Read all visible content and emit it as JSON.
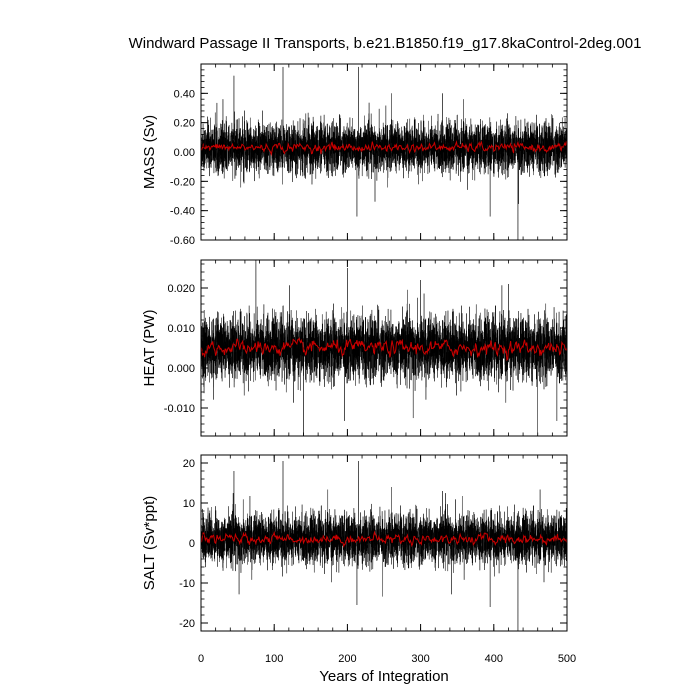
{
  "chart_data": {
    "type": "line",
    "title": "Windward Passage II Transports, b.e21.B1850.f19_g17.8kaControl-2deg.001",
    "xlabel": "Years of Integration",
    "xlim": [
      0,
      500
    ],
    "x_ticks": [
      0,
      100,
      200,
      300,
      400,
      500
    ],
    "x_tick_labels": [
      "0",
      "100",
      "200",
      "300",
      "400",
      "500"
    ],
    "series_colors": {
      "monthly": "#000000",
      "smoothed": "#cc0000"
    },
    "panels": [
      {
        "ylabel": "MASS (Sv)",
        "ylim": [
          -0.6,
          0.6
        ],
        "y_ticks": [
          -0.6,
          -0.4,
          -0.2,
          0.0,
          0.2,
          0.4
        ],
        "y_tick_labels": [
          "-0.60",
          "-0.40",
          "-0.20",
          "0.00",
          "0.20",
          "0.40"
        ],
        "mean": 0.03,
        "noise": 0.08,
        "smooth_amp": 0.02,
        "spikes": [
          {
            "x": 45,
            "y": 0.52
          },
          {
            "x": 112,
            "y": 0.58
          },
          {
            "x": 213,
            "y": -0.44
          },
          {
            "x": 215,
            "y": 0.58
          },
          {
            "x": 433,
            "y": -0.6
          },
          {
            "x": 330,
            "y": 0.4
          },
          {
            "x": 260,
            "y": 0.4
          },
          {
            "x": 30,
            "y": 0.36
          },
          {
            "x": 395,
            "y": -0.44
          }
        ]
      },
      {
        "ylabel": "HEAT (PW)",
        "ylim": [
          -0.017,
          0.027
        ],
        "y_ticks": [
          -0.01,
          0.0,
          0.01,
          0.02
        ],
        "y_tick_labels": [
          "-0.010",
          "0.000",
          "0.010",
          "0.020"
        ],
        "mean": 0.005,
        "noise": 0.0038,
        "smooth_amp": 0.0012,
        "spikes": [
          {
            "x": 75,
            "y": 0.027
          },
          {
            "x": 140,
            "y": -0.017
          },
          {
            "x": 200,
            "y": 0.025
          },
          {
            "x": 460,
            "y": -0.017
          },
          {
            "x": 300,
            "y": 0.022
          },
          {
            "x": 420,
            "y": 0.021
          }
        ]
      },
      {
        "ylabel": "SALT (Sv*ppt)",
        "ylim": [
          -22,
          22
        ],
        "y_ticks": [
          -20,
          -10,
          0,
          10,
          20
        ],
        "y_tick_labels": [
          "-20",
          "-10",
          "0",
          "10",
          "20"
        ],
        "mean": 1.0,
        "noise": 3.0,
        "smooth_amp": 0.8,
        "spikes": [
          {
            "x": 45,
            "y": 18
          },
          {
            "x": 112,
            "y": 20.5
          },
          {
            "x": 213,
            "y": -15.5
          },
          {
            "x": 215,
            "y": 20.5
          },
          {
            "x": 433,
            "y": -22
          },
          {
            "x": 395,
            "y": -16
          },
          {
            "x": 330,
            "y": 13
          },
          {
            "x": 260,
            "y": 14
          }
        ]
      }
    ]
  }
}
